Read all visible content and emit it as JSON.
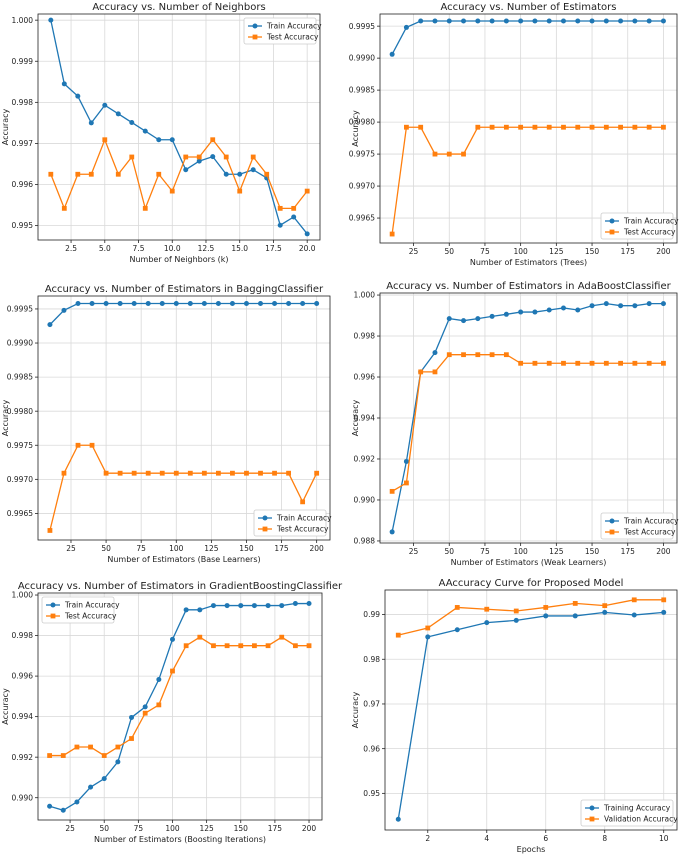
{
  "colors": {
    "train": "#1f77b4",
    "test": "#ff7f0e"
  },
  "chart_data": [
    {
      "type": "line",
      "title": "Accuracy vs. Number of Neighbors",
      "xlabel": "Number of Neighbors (k)",
      "ylabel": "Accuracy",
      "xlim": [
        0.05,
        20.95
      ],
      "ylim": [
        0.99465,
        1.00015
      ],
      "xticks": [
        2.5,
        5.0,
        7.5,
        10.0,
        12.5,
        15.0,
        17.5,
        20.0
      ],
      "xtick_labels": [
        "2.5",
        "5.0",
        "7.5",
        "10.0",
        "12.5",
        "15.0",
        "17.5",
        "20.0"
      ],
      "yticks": [
        0.995,
        0.996,
        0.997,
        0.998,
        0.999,
        1.0
      ],
      "ytick_labels": [
        "0.995",
        "0.996",
        "0.997",
        "0.998",
        "0.999",
        "1.000"
      ],
      "legend": "top-right",
      "x": [
        1,
        2,
        3,
        4,
        5,
        6,
        7,
        8,
        9,
        10,
        11,
        12,
        13,
        14,
        15,
        16,
        17,
        18,
        19,
        20
      ],
      "series": [
        {
          "name": "Train Accuracy",
          "marker": "circle",
          "values": [
            1.0,
            0.99845,
            0.99815,
            0.9975,
            0.99793,
            0.99772,
            0.99751,
            0.9973,
            0.99709,
            0.99709,
            0.99636,
            0.99657,
            0.99668,
            0.99625,
            0.99625,
            0.99636,
            0.99616,
            0.99501,
            0.99521,
            0.9948
          ]
        },
        {
          "name": "Test Accuracy",
          "marker": "square",
          "values": [
            0.99625,
            0.99542,
            0.99625,
            0.99625,
            0.99709,
            0.99625,
            0.99667,
            0.99542,
            0.99625,
            0.99584,
            0.99667,
            0.99667,
            0.99709,
            0.99667,
            0.99584,
            0.99667,
            0.99625,
            0.99542,
            0.99542,
            0.99584
          ]
        }
      ]
    },
    {
      "type": "line",
      "title": "Accuracy vs. Number of Estimators",
      "xlabel": "Number of Estimators (Trees)",
      "ylabel": "Accuracy",
      "xlim": [
        1.5,
        209.5
      ],
      "ylim": [
        0.99611,
        0.99969
      ],
      "xticks": [
        25,
        50,
        75,
        100,
        125,
        150,
        175,
        200
      ],
      "xtick_labels": [
        "25",
        "50",
        "75",
        "100",
        "125",
        "150",
        "175",
        "200"
      ],
      "yticks": [
        0.9965,
        0.997,
        0.9975,
        0.998,
        0.9985,
        0.999,
        0.9995
      ],
      "ytick_labels": [
        "0.9965",
        "0.9970",
        "0.9975",
        "0.9980",
        "0.9985",
        "0.9990",
        "0.9995"
      ],
      "legend": "bottom-right",
      "x": [
        10,
        20,
        30,
        40,
        50,
        60,
        70,
        80,
        90,
        100,
        110,
        120,
        130,
        140,
        150,
        160,
        170,
        180,
        190,
        200
      ],
      "series": [
        {
          "name": "Train Accuracy",
          "marker": "circle",
          "values": [
            0.99906,
            0.99948,
            0.99958,
            0.99958,
            0.99958,
            0.99958,
            0.99958,
            0.99958,
            0.99958,
            0.99958,
            0.99958,
            0.99958,
            0.99958,
            0.99958,
            0.99958,
            0.99958,
            0.99958,
            0.99958,
            0.99958,
            0.99958
          ]
        },
        {
          "name": "Test Accuracy",
          "marker": "square",
          "values": [
            0.99625,
            0.99792,
            0.99792,
            0.9975,
            0.9975,
            0.9975,
            0.99792,
            0.99792,
            0.99792,
            0.99792,
            0.99792,
            0.99792,
            0.99792,
            0.99792,
            0.99792,
            0.99792,
            0.99792,
            0.99792,
            0.99792,
            0.99792
          ]
        }
      ]
    },
    {
      "type": "line",
      "title": "Accuracy vs. Number of Estimators in BaggingClassifier",
      "xlabel": "Number of Estimators (Base Learners)",
      "ylabel": "Accuracy",
      "xlim": [
        1.5,
        209.5
      ],
      "ylim": [
        0.99611,
        0.99969
      ],
      "xticks": [
        25,
        50,
        75,
        100,
        125,
        150,
        175,
        200
      ],
      "xtick_labels": [
        "25",
        "50",
        "75",
        "100",
        "125",
        "150",
        "175",
        "200"
      ],
      "yticks": [
        0.9965,
        0.997,
        0.9975,
        0.998,
        0.9985,
        0.999,
        0.9995
      ],
      "ytick_labels": [
        "0.9965",
        "0.9970",
        "0.9975",
        "0.9980",
        "0.9985",
        "0.9990",
        "0.9995"
      ],
      "legend": "bottom-right",
      "x": [
        10,
        20,
        30,
        40,
        50,
        60,
        70,
        80,
        90,
        100,
        110,
        120,
        130,
        140,
        150,
        160,
        170,
        180,
        190,
        200
      ],
      "series": [
        {
          "name": "Train Accuracy",
          "marker": "circle",
          "values": [
            0.99927,
            0.99948,
            0.99958,
            0.99958,
            0.99958,
            0.99958,
            0.99958,
            0.99958,
            0.99958,
            0.99958,
            0.99958,
            0.99958,
            0.99958,
            0.99958,
            0.99958,
            0.99958,
            0.99958,
            0.99958,
            0.99958,
            0.99958
          ]
        },
        {
          "name": "Test Accuracy",
          "marker": "square",
          "values": [
            0.99625,
            0.99709,
            0.9975,
            0.9975,
            0.99709,
            0.99709,
            0.99709,
            0.99709,
            0.99709,
            0.99709,
            0.99709,
            0.99709,
            0.99709,
            0.99709,
            0.99709,
            0.99709,
            0.99709,
            0.99709,
            0.99667,
            0.99709
          ]
        }
      ]
    },
    {
      "type": "line",
      "title": "Accuracy vs. Number of Estimators in AdaBoostClassifier",
      "xlabel": "Number of Estimators (Weak Learners)",
      "ylabel": "Accuracy",
      "xlim": [
        1.5,
        209.5
      ],
      "ylim": [
        0.9879,
        1.0001
      ],
      "xticks": [
        25,
        50,
        75,
        100,
        125,
        150,
        175,
        200
      ],
      "xtick_labels": [
        "25",
        "50",
        "75",
        "100",
        "125",
        "150",
        "175",
        "200"
      ],
      "yticks": [
        0.988,
        0.99,
        0.992,
        0.994,
        0.996,
        0.998,
        1.0
      ],
      "ytick_labels": [
        "0.988",
        "0.990",
        "0.992",
        "0.994",
        "0.996",
        "0.998",
        "1.000"
      ],
      "legend": "bottom-right",
      "x": [
        10,
        20,
        30,
        40,
        50,
        60,
        70,
        80,
        90,
        100,
        110,
        120,
        130,
        140,
        150,
        160,
        170,
        180,
        190,
        200
      ],
      "series": [
        {
          "name": "Train Accuracy",
          "marker": "circle",
          "values": [
            0.98844,
            0.99188,
            0.99625,
            0.99719,
            0.99885,
            0.99875,
            0.99885,
            0.99896,
            0.99906,
            0.99917,
            0.99917,
            0.99927,
            0.99937,
            0.99927,
            0.99948,
            0.99958,
            0.99948,
            0.99948,
            0.99958,
            0.99958
          ]
        },
        {
          "name": "Test Accuracy",
          "marker": "square",
          "values": [
            0.99042,
            0.99083,
            0.99625,
            0.99625,
            0.99709,
            0.99709,
            0.99709,
            0.99709,
            0.99709,
            0.99667,
            0.99667,
            0.99667,
            0.99667,
            0.99667,
            0.99667,
            0.99667,
            0.99667,
            0.99667,
            0.99667,
            0.99667
          ]
        }
      ]
    },
    {
      "type": "line",
      "title": "Accuracy vs. Number of Estimators in GradientBoostingClassifier",
      "xlabel": "Number of Estimators (Boosting Iterations)",
      "ylabel": "Accuracy",
      "xlim": [
        1.5,
        209.5
      ],
      "ylim": [
        0.9889,
        1.0001
      ],
      "xticks": [
        25,
        50,
        75,
        100,
        125,
        150,
        175,
        200
      ],
      "xtick_labels": [
        "25",
        "50",
        "75",
        "100",
        "125",
        "150",
        "175",
        "200"
      ],
      "yticks": [
        0.99,
        0.992,
        0.994,
        0.996,
        0.998,
        1.0
      ],
      "ytick_labels": [
        "0.990",
        "0.992",
        "0.994",
        "0.996",
        "0.998",
        "1.000"
      ],
      "legend": "top-left",
      "x": [
        10,
        20,
        30,
        40,
        50,
        60,
        70,
        80,
        90,
        100,
        110,
        120,
        130,
        140,
        150,
        160,
        170,
        180,
        190,
        200
      ],
      "series": [
        {
          "name": "Train Accuracy",
          "marker": "circle",
          "values": [
            0.98958,
            0.98938,
            0.98979,
            0.99052,
            0.99094,
            0.99177,
            0.99396,
            0.99448,
            0.99583,
            0.99781,
            0.99927,
            0.99927,
            0.99948,
            0.99948,
            0.99948,
            0.99948,
            0.99948,
            0.99948,
            0.99958,
            0.99958
          ]
        },
        {
          "name": "Test Accuracy",
          "marker": "square",
          "values": [
            0.99208,
            0.99208,
            0.9925,
            0.9925,
            0.99208,
            0.9925,
            0.99292,
            0.99417,
            0.99458,
            0.99625,
            0.9975,
            0.99792,
            0.9975,
            0.9975,
            0.9975,
            0.9975,
            0.9975,
            0.99792,
            0.9975,
            0.9975
          ]
        }
      ]
    },
    {
      "type": "line",
      "title": "AAccuracy Curve for Proposed Model",
      "xlabel": "Epochs",
      "ylabel": "Accuracy",
      "xlim": [
        0.55,
        10.45
      ],
      "ylim": [
        0.9418,
        0.9955
      ],
      "xticks": [
        2,
        4,
        6,
        8,
        10
      ],
      "xtick_labels": [
        "2",
        "4",
        "6",
        "8",
        "10"
      ],
      "yticks": [
        0.95,
        0.96,
        0.97,
        0.98,
        0.99
      ],
      "ytick_labels": [
        "0.95",
        "0.96",
        "0.97",
        "0.98",
        "0.99"
      ],
      "legend": "bottom-right",
      "x": [
        1,
        2,
        3,
        4,
        5,
        6,
        7,
        8,
        9,
        10
      ],
      "series": [
        {
          "name": "Training Accuracy",
          "marker": "circle",
          "values": [
            0.9442,
            0.985,
            0.9866,
            0.9882,
            0.9887,
            0.9897,
            0.9897,
            0.9905,
            0.9899,
            0.9905
          ]
        },
        {
          "name": "Validation Accuracy",
          "marker": "square",
          "values": [
            0.9854,
            0.987,
            0.9916,
            0.9912,
            0.9908,
            0.9916,
            0.9925,
            0.992,
            0.9933,
            0.9933
          ]
        }
      ]
    }
  ]
}
